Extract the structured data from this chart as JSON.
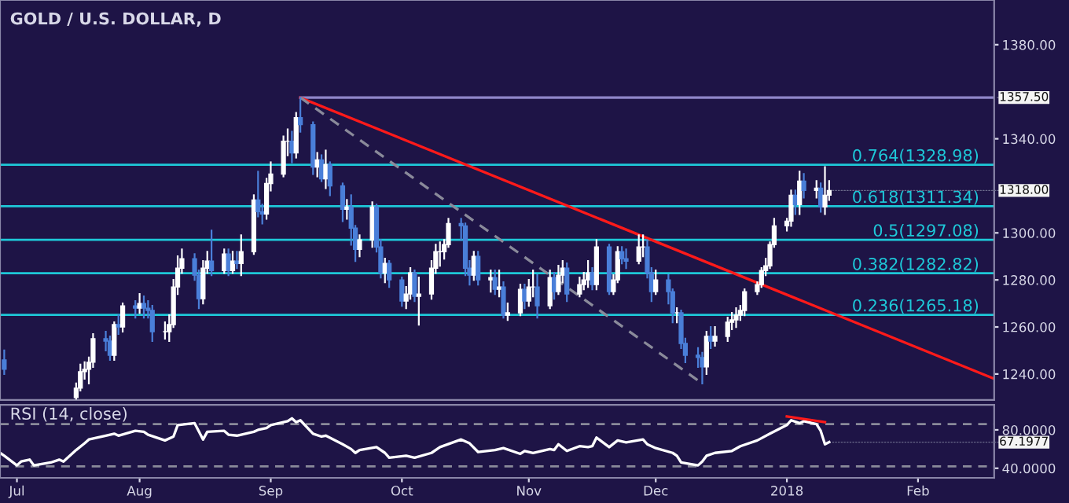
{
  "chart_data": [
    {
      "type": "candlestick",
      "title": "GOLD / U.S. DOLLAR, D",
      "x": [
        "2017-06-30",
        "2017-07-17",
        "2017-07-18",
        "2017-07-19",
        "2017-07-20",
        "2017-07-21",
        "2017-07-24",
        "2017-07-25",
        "2017-07-26",
        "2017-07-27",
        "2017-07-28",
        "2017-07-31",
        "2017-08-01",
        "2017-08-02",
        "2017-08-03",
        "2017-08-04",
        "2017-08-07",
        "2017-08-08",
        "2017-08-09",
        "2017-08-10",
        "2017-08-11",
        "2017-08-14",
        "2017-08-15",
        "2017-08-16",
        "2017-08-17",
        "2017-08-18",
        "2017-08-21",
        "2017-08-22",
        "2017-08-23",
        "2017-08-24",
        "2017-08-25",
        "2017-08-28",
        "2017-08-29",
        "2017-08-30",
        "2017-08-31",
        "2017-09-01",
        "2017-09-04",
        "2017-09-05",
        "2017-09-06",
        "2017-09-07",
        "2017-09-08",
        "2017-09-11",
        "2017-09-12",
        "2017-09-13",
        "2017-09-14",
        "2017-09-15",
        "2017-09-18",
        "2017-09-19",
        "2017-09-20",
        "2017-09-21",
        "2017-09-22",
        "2017-09-25",
        "2017-09-26",
        "2017-09-27",
        "2017-09-28",
        "2017-09-29",
        "2017-10-02",
        "2017-10-03",
        "2017-10-04",
        "2017-10-05",
        "2017-10-06",
        "2017-10-09",
        "2017-10-10",
        "2017-10-11",
        "2017-10-12",
        "2017-10-13",
        "2017-10-16",
        "2017-10-17",
        "2017-10-18",
        "2017-10-19",
        "2017-10-20",
        "2017-10-23",
        "2017-10-24",
        "2017-10-25",
        "2017-10-26",
        "2017-10-27",
        "2017-10-30",
        "2017-10-31",
        "2017-11-01",
        "2017-11-02",
        "2017-11-03",
        "2017-11-06",
        "2017-11-07",
        "2017-11-08",
        "2017-11-09",
        "2017-11-10",
        "2017-11-13",
        "2017-11-14",
        "2017-11-15",
        "2017-11-16",
        "2017-11-17",
        "2017-11-20",
        "2017-11-21",
        "2017-11-22",
        "2017-11-23",
        "2017-11-24",
        "2017-11-27",
        "2017-11-28",
        "2017-11-29",
        "2017-11-30",
        "2017-12-01",
        "2017-12-04",
        "2017-12-05",
        "2017-12-06",
        "2017-12-07",
        "2017-12-08",
        "2017-12-11",
        "2017-12-12",
        "2017-12-13",
        "2017-12-14",
        "2017-12-15",
        "2017-12-18",
        "2017-12-19",
        "2017-12-20",
        "2017-12-21",
        "2017-12-22",
        "2017-12-25",
        "2017-12-26",
        "2017-12-27",
        "2017-12-28",
        "2017-12-29",
        "2018-01-01",
        "2018-01-02",
        "2018-01-03",
        "2018-01-04",
        "2018-01-05",
        "2018-01-08",
        "2018-01-09",
        "2018-01-10",
        "2018-01-11"
      ],
      "ohlc": [
        [
          1246,
          1250,
          1240,
          1242
        ],
        [
          1230,
          1236,
          1229.5,
          1234
        ],
        [
          1234,
          1244,
          1233,
          1241
        ],
        [
          1241,
          1245,
          1238,
          1242
        ],
        [
          1242,
          1247,
          1236,
          1245
        ],
        [
          1245,
          1257,
          1243,
          1255
        ],
        [
          1255,
          1258,
          1250,
          1254
        ],
        [
          1254,
          1256,
          1246,
          1248
        ],
        [
          1248,
          1262,
          1246,
          1261
        ],
        [
          1261,
          1265,
          1257,
          1260
        ],
        [
          1260,
          1270,
          1258,
          1269
        ],
        [
          1269,
          1271,
          1264,
          1268
        ],
        [
          1268,
          1274,
          1266,
          1270
        ],
        [
          1270,
          1273,
          1264,
          1268
        ],
        [
          1268,
          1271,
          1264,
          1267
        ],
        [
          1267,
          1269,
          1254,
          1258
        ],
        [
          1258,
          1262,
          1255,
          1258
        ],
        [
          1258,
          1265,
          1254,
          1261
        ],
        [
          1261,
          1280,
          1260,
          1277
        ],
        [
          1277,
          1290,
          1274,
          1285
        ],
        [
          1285,
          1293,
          1283,
          1289
        ],
        [
          1289,
          1291,
          1280,
          1282
        ],
        [
          1282,
          1284,
          1268,
          1272
        ],
        [
          1272,
          1288,
          1270,
          1285
        ],
        [
          1285,
          1292,
          1283,
          1288
        ],
        [
          1288,
          1301,
          1282,
          1284
        ],
        [
          1284,
          1293,
          1283,
          1291
        ],
        [
          1291,
          1293,
          1282,
          1284
        ],
        [
          1284,
          1292,
          1283,
          1288
        ],
        [
          1288,
          1292,
          1285,
          1287
        ],
        [
          1287,
          1299,
          1282,
          1292
        ],
        [
          1292,
          1316,
          1291,
          1314
        ],
        [
          1314,
          1326,
          1307,
          1309
        ],
        [
          1309,
          1312,
          1304,
          1308
        ],
        [
          1308,
          1323,
          1306,
          1321
        ],
        [
          1321,
          1330,
          1318,
          1325
        ],
        [
          1325,
          1341,
          1324,
          1339
        ],
        [
          1339,
          1344,
          1333,
          1339
        ],
        [
          1339,
          1343,
          1330,
          1334
        ],
        [
          1334,
          1351,
          1332,
          1349
        ],
        [
          1349,
          1357.5,
          1343,
          1346
        ],
        [
          1346,
          1347,
          1325,
          1328
        ],
        [
          1328,
          1334,
          1324,
          1331
        ],
        [
          1331,
          1333,
          1322,
          1323
        ],
        [
          1323,
          1335,
          1319,
          1329
        ],
        [
          1329,
          1330,
          1316,
          1320
        ],
        [
          1320,
          1321,
          1305,
          1310
        ],
        [
          1310,
          1314,
          1306,
          1311
        ],
        [
          1311,
          1316,
          1295,
          1302
        ],
        [
          1302,
          1303,
          1288,
          1293
        ],
        [
          1293,
          1299,
          1290,
          1297
        ],
        [
          1297,
          1313,
          1294,
          1311
        ],
        [
          1311,
          1312,
          1292,
          1294
        ],
        [
          1294,
          1297,
          1281,
          1283
        ],
        [
          1283,
          1289,
          1279,
          1287
        ],
        [
          1287,
          1288,
          1277,
          1280
        ],
        [
          1280,
          1281,
          1269,
          1271
        ],
        [
          1271,
          1277,
          1268,
          1274
        ],
        [
          1274,
          1285,
          1272,
          1283
        ],
        [
          1283,
          1284,
          1271,
          1273
        ],
        [
          1273,
          1281,
          1261,
          1274
        ],
        [
          1274,
          1288,
          1272,
          1285
        ],
        [
          1285,
          1295,
          1283,
          1292
        ],
        [
          1292,
          1296,
          1286,
          1292
        ],
        [
          1292,
          1297,
          1289,
          1295
        ],
        [
          1295,
          1306,
          1294,
          1304
        ],
        [
          1304,
          1306,
          1297,
          1303
        ],
        [
          1303,
          1304,
          1282,
          1285
        ],
        [
          1285,
          1288,
          1278,
          1282
        ],
        [
          1282,
          1292,
          1280,
          1290
        ],
        [
          1290,
          1292,
          1278,
          1280
        ],
        [
          1280,
          1284,
          1275,
          1281
        ],
        [
          1281,
          1284,
          1274,
          1276
        ],
        [
          1276,
          1284,
          1273,
          1277
        ],
        [
          1277,
          1279,
          1264,
          1265
        ],
        [
          1265,
          1270,
          1263,
          1266
        ],
        [
          1266,
          1278,
          1265,
          1276
        ],
        [
          1276,
          1278,
          1268,
          1271
        ],
        [
          1271,
          1280,
          1269,
          1277
        ],
        [
          1277,
          1284,
          1273,
          1277
        ],
        [
          1277,
          1282,
          1264,
          1269
        ],
        [
          1269,
          1284,
          1268,
          1281
        ],
        [
          1281,
          1283,
          1272,
          1275
        ],
        [
          1275,
          1286,
          1274,
          1282
        ],
        [
          1282,
          1288,
          1279,
          1285
        ],
        [
          1285,
          1287,
          1271,
          1274
        ],
        [
          1274,
          1281,
          1273,
          1278
        ],
        [
          1278,
          1283,
          1276,
          1280
        ],
        [
          1280,
          1288,
          1277,
          1283
        ],
        [
          1283,
          1285,
          1276,
          1278
        ],
        [
          1278,
          1297,
          1276,
          1294
        ],
        [
          1294,
          1295,
          1274,
          1275
        ],
        [
          1275,
          1282,
          1274,
          1280
        ],
        [
          1280,
          1294,
          1279,
          1292
        ],
        [
          1292,
          1294,
          1287,
          1289
        ],
        [
          1289,
          1293,
          1285,
          1288
        ],
        [
          1288,
          1299,
          1287,
          1294
        ],
        [
          1294,
          1299,
          1290,
          1294
        ],
        [
          1294,
          1297,
          1281,
          1283
        ],
        [
          1283,
          1285,
          1271,
          1275
        ],
        [
          1275,
          1284,
          1274,
          1280
        ],
        [
          1280,
          1282,
          1270,
          1275
        ],
        [
          1275,
          1276,
          1262,
          1266
        ],
        [
          1266,
          1268,
          1262,
          1266
        ],
        [
          1266,
          1267,
          1251,
          1253
        ],
        [
          1253,
          1255,
          1245,
          1248
        ],
        [
          1248,
          1251,
          1243,
          1247
        ],
        [
          1247,
          1249,
          1236,
          1243
        ],
        [
          1243,
          1258,
          1240,
          1256
        ],
        [
          1256,
          1260,
          1251,
          1254
        ],
        [
          1254,
          1260,
          1252,
          1256
        ],
        [
          1256,
          1264,
          1254,
          1262
        ],
        [
          1262,
          1266,
          1259,
          1263
        ],
        [
          1263,
          1268,
          1260,
          1265
        ],
        [
          1265,
          1269,
          1263,
          1267
        ],
        [
          1267,
          1276,
          1265,
          1275
        ],
        [
          1275,
          1279,
          1274,
          1278
        ],
        [
          1278,
          1285,
          1277,
          1284
        ],
        [
          1284,
          1289,
          1282,
          1286
        ],
        [
          1286,
          1296,
          1285,
          1295
        ],
        [
          1295,
          1306,
          1294,
          1303
        ],
        [
          1303,
          1306,
          1301,
          1305
        ],
        [
          1305,
          1318,
          1303,
          1316
        ],
        [
          1316,
          1318,
          1308,
          1312
        ],
        [
          1312,
          1326,
          1308,
          1322
        ],
        [
          1322,
          1325,
          1315,
          1318
        ],
        [
          1318,
          1322,
          1315,
          1319
        ],
        [
          1319,
          1321,
          1309,
          1311
        ],
        [
          1311,
          1328,
          1308,
          1316
        ],
        [
          1316,
          1322,
          1314,
          1318
        ]
      ],
      "colors": [
        "#4a7fd9",
        "#ffffff",
        "#ffffff",
        "#ffffff",
        "#ffffff",
        "#ffffff",
        "#4a7fd9",
        "#4a7fd9",
        "#ffffff",
        "#4a7fd9",
        "#ffffff",
        "#4a7fd9",
        "#ffffff",
        "#4a7fd9",
        "#4a7fd9",
        "#4a7fd9",
        "#ffffff",
        "#ffffff",
        "#ffffff",
        "#ffffff",
        "#ffffff",
        "#4a7fd9",
        "#4a7fd9",
        "#ffffff",
        "#ffffff",
        "#4a7fd9",
        "#ffffff",
        "#4a7fd9",
        "#ffffff",
        "#4a7fd9",
        "#ffffff",
        "#ffffff",
        "#4a7fd9",
        "#4a7fd9",
        "#ffffff",
        "#ffffff",
        "#ffffff",
        "#ffffff",
        "#4a7fd9",
        "#ffffff",
        "#4a7fd9",
        "#4a7fd9",
        "#ffffff",
        "#4a7fd9",
        "#ffffff",
        "#4a7fd9",
        "#4a7fd9",
        "#ffffff",
        "#4a7fd9",
        "#4a7fd9",
        "#ffffff",
        "#ffffff",
        "#4a7fd9",
        "#4a7fd9",
        "#ffffff",
        "#4a7fd9",
        "#4a7fd9",
        "#ffffff",
        "#ffffff",
        "#4a7fd9",
        "#ffffff",
        "#ffffff",
        "#ffffff",
        "#ffffff",
        "#ffffff",
        "#ffffff",
        "#4a7fd9",
        "#4a7fd9",
        "#4a7fd9",
        "#ffffff",
        "#4a7fd9",
        "#ffffff",
        "#4a7fd9",
        "#ffffff",
        "#4a7fd9",
        "#ffffff",
        "#ffffff",
        "#4a7fd9",
        "#ffffff",
        "#ffffff",
        "#4a7fd9",
        "#ffffff",
        "#4a7fd9",
        "#ffffff",
        "#ffffff",
        "#4a7fd9",
        "#ffffff",
        "#ffffff",
        "#ffffff",
        "#4a7fd9",
        "#ffffff",
        "#4a7fd9",
        "#ffffff",
        "#ffffff",
        "#4a7fd9",
        "#4a7fd9",
        "#ffffff",
        "#ffffff",
        "#4a7fd9",
        "#4a7fd9",
        "#ffffff",
        "#4a7fd9",
        "#4a7fd9",
        "#ffffff",
        "#4a7fd9",
        "#4a7fd9",
        "#4a7fd9",
        "#4a7fd9",
        "#ffffff",
        "#4a7fd9",
        "#ffffff",
        "#ffffff",
        "#ffffff",
        "#ffffff",
        "#ffffff",
        "#ffffff",
        "#ffffff",
        "#ffffff",
        "#ffffff",
        "#ffffff",
        "#ffffff",
        "#ffffff",
        "#ffffff",
        "#4a7fd9",
        "#ffffff",
        "#4a7fd9",
        "#ffffff",
        "#4a7fd9",
        "#ffffff",
        "#ffffff"
      ],
      "series": [
        {
          "type": "line",
          "x": [
            "2017-09-08",
            "2018-02-19"
          ],
          "values": [
            1357.5,
            1357.5
          ],
          "color": "#8f86c9"
        },
        {
          "type": "line",
          "x": [
            "2017-09-08",
            "2018-02-19"
          ],
          "values": [
            1357.5,
            1238
          ],
          "color": "#ff1a1a"
        },
        {
          "type": "line",
          "x": [
            "2017-09-08",
            "2017-12-12"
          ],
          "values": [
            1357.5,
            1236
          ],
          "color": "#8a8a9a",
          "line_style": "dashed"
        }
      ],
      "ref_lines": [
        {
          "axis": "y",
          "value": 1328.98,
          "label": "0.764(1328.98)",
          "color": "#1ec8d8"
        },
        {
          "axis": "y",
          "value": 1311.34,
          "label": "0.618(1311.34)",
          "color": "#1ec8d8"
        },
        {
          "axis": "y",
          "value": 1297.08,
          "label": "0.5(1297.08)",
          "color": "#1ec8d8"
        },
        {
          "axis": "y",
          "value": 1282.82,
          "label": "0.382(1282.82)",
          "color": "#1ec8d8"
        },
        {
          "axis": "y",
          "value": 1265.18,
          "label": "0.236(1265.18)",
          "color": "#1ec8d8"
        }
      ],
      "annotations": [
        {
          "text": "1357.50",
          "x": "2018-02-19",
          "y": 1357.5
        },
        {
          "text": "1318.00",
          "x": "2018-01-11",
          "y": 1318
        }
      ],
      "xlim": [
        "2017-06-29",
        "2018-02-19"
      ],
      "ylim": [
        1229,
        1399
      ],
      "yticks": [
        {
          "value": 1240,
          "label": "1240.00"
        },
        {
          "value": 1260,
          "label": "1260.00"
        },
        {
          "value": 1280,
          "label": "1280.00"
        },
        {
          "value": 1300,
          "label": "1300.00"
        },
        {
          "value": 1340,
          "label": "1340.00"
        },
        {
          "value": 1380,
          "label": "1380.00"
        }
      ],
      "tick_labels": "y"
    },
    {
      "type": "line",
      "title": "RSI (14, close)",
      "series": [
        {
          "x": [
            "2017-06-29",
            "2017-06-30",
            "2017-07-03",
            "2017-07-04",
            "2017-07-06",
            "2017-07-07",
            "2017-07-11",
            "2017-07-13",
            "2017-07-14",
            "2017-07-17",
            "2017-07-19",
            "2017-07-20",
            "2017-07-24",
            "2017-07-26",
            "2017-07-27",
            "2017-07-31",
            "2017-08-02",
            "2017-08-03",
            "2017-08-07",
            "2017-08-09",
            "2017-08-10",
            "2017-08-14",
            "2017-08-16",
            "2017-08-17",
            "2017-08-21",
            "2017-08-22",
            "2017-08-24",
            "2017-08-28",
            "2017-08-29",
            "2017-08-31",
            "2017-09-01",
            "2017-09-05",
            "2017-09-06",
            "2017-09-07",
            "2017-09-08",
            "2017-09-11",
            "2017-09-13",
            "2017-09-14",
            "2017-09-18",
            "2017-09-20",
            "2017-09-21",
            "2017-09-22",
            "2017-09-26",
            "2017-09-28",
            "2017-09-29",
            "2017-10-03",
            "2017-10-05",
            "2017-10-09",
            "2017-10-11",
            "2017-10-16",
            "2017-10-18",
            "2017-10-20",
            "2017-10-24",
            "2017-10-26",
            "2017-10-30",
            "2017-10-31",
            "2017-11-02",
            "2017-11-06",
            "2017-11-07",
            "2017-11-08",
            "2017-11-10",
            "2017-11-13",
            "2017-11-15",
            "2017-11-16",
            "2017-11-17",
            "2017-11-20",
            "2017-11-22",
            "2017-11-24",
            "2017-11-28",
            "2017-11-29",
            "2017-12-01",
            "2017-12-05",
            "2017-12-06",
            "2017-12-07",
            "2017-12-11",
            "2017-12-12",
            "2017-12-13",
            "2017-12-15",
            "2017-12-19",
            "2017-12-21",
            "2017-12-25",
            "2017-12-28",
            "2018-01-01",
            "2018-01-02",
            "2018-01-04",
            "2018-01-05",
            "2018-01-08",
            "2018-01-09",
            "2018-01-10",
            "2018-01-11"
          ],
          "values": [
            56,
            53,
            43,
            47,
            49,
            43,
            46,
            49,
            47,
            59,
            66,
            70,
            74,
            76,
            74,
            79,
            78,
            75,
            69,
            73,
            85,
            87,
            70,
            78,
            79,
            75,
            74,
            78,
            80,
            82,
            85,
            89,
            92,
            88,
            90,
            76,
            73,
            74,
            65,
            60,
            56,
            59,
            62,
            56,
            51,
            53,
            51,
            56,
            62,
            70,
            66,
            57,
            59,
            61,
            55,
            58,
            56,
            60,
            59,
            65,
            58,
            63,
            62,
            63,
            72,
            62,
            69,
            67,
            70,
            65,
            61,
            56,
            53,
            46,
            43,
            47,
            53,
            56,
            58,
            63,
            69,
            76,
            85,
            90,
            87,
            89,
            86,
            79,
            65,
            67.1977
          ],
          "color": "#ffffff"
        },
        {
          "x": [
            "2018-01-01",
            "2018-01-10"
          ],
          "values": [
            94,
            88
          ],
          "color": "#ff1a1a"
        }
      ],
      "ref_lines": [
        {
          "axis": "y",
          "value": 86,
          "color": "#8a8a9a",
          "line_style": "dashed"
        },
        {
          "axis": "y",
          "value": 42,
          "color": "#8a8a9a",
          "line_style": "dashed"
        }
      ],
      "annotations": [
        {
          "text": "67.1977",
          "x": "2018-01-11",
          "y": 67.1977
        }
      ],
      "xlim": [
        "2017-06-29",
        "2018-02-19"
      ],
      "xticks": [
        {
          "value": "2017-07-03",
          "label": "Jul"
        },
        {
          "value": "2017-08-01",
          "label": "Aug"
        },
        {
          "value": "2017-09-01",
          "label": "Sep"
        },
        {
          "value": "2017-10-02",
          "label": "Oct"
        },
        {
          "value": "2017-11-01",
          "label": "Nov"
        },
        {
          "value": "2017-12-01",
          "label": "Dec"
        },
        {
          "value": "2018-01-01",
          "label": "2018"
        },
        {
          "value": "2018-02-01",
          "label": "Feb"
        }
      ],
      "ylim": [
        30,
        106
      ],
      "yticks": [
        {
          "value": 80,
          "label": "80.0000"
        },
        {
          "value": 40,
          "label": "40.0000"
        }
      ]
    }
  ]
}
